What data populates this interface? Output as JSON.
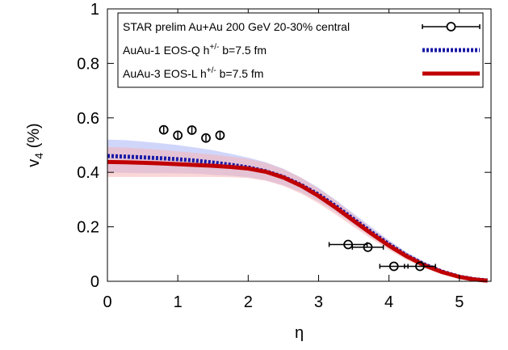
{
  "chart_data": {
    "type": "line",
    "xlabel": "η",
    "ylabel": {
      "main": "v",
      "sub": "4",
      "rest": " (%)"
    },
    "xlim": [
      0,
      5.45
    ],
    "ylim": [
      0,
      1
    ],
    "xticks": [
      0,
      1,
      2,
      3,
      4,
      5
    ],
    "yticks": [
      0,
      0.2,
      0.4,
      0.6,
      0.8,
      1
    ],
    "xtick_labels": [
      "0",
      "1",
      "2",
      "3",
      "4",
      "5"
    ],
    "ytick_labels": [
      "0",
      "0.2",
      "0.4",
      "0.6",
      "0.8",
      "1"
    ],
    "grid": false,
    "legend_position": "top-right",
    "series": [
      {
        "name": "STAR prelim Au+Au 200 GeV 20-30% central",
        "kind": "points",
        "color": "#000000",
        "points": [
          {
            "x": 0.8,
            "y": 0.556,
            "xerr": 0.0,
            "yerr": 0.012
          },
          {
            "x": 1.0,
            "y": 0.536,
            "xerr": 0.0,
            "yerr": 0.012
          },
          {
            "x": 1.2,
            "y": 0.555,
            "xerr": 0.0,
            "yerr": 0.012
          },
          {
            "x": 1.4,
            "y": 0.526,
            "xerr": 0.0,
            "yerr": 0.012
          },
          {
            "x": 1.6,
            "y": 0.536,
            "xerr": 0.0,
            "yerr": 0.012
          },
          {
            "x": 3.42,
            "y": 0.135,
            "xerr": 0.27,
            "yerr": 0.0
          },
          {
            "x": 3.7,
            "y": 0.125,
            "xerr": 0.22,
            "yerr": 0.0
          },
          {
            "x": 4.07,
            "y": 0.055,
            "xerr": 0.2,
            "yerr": 0.0
          },
          {
            "x": 4.44,
            "y": 0.055,
            "xerr": 0.22,
            "yerr": 0.0
          }
        ]
      },
      {
        "name": "AuAu-1 EOS-Q h",
        "name_sup": "+/-",
        "name_suffix": " b=7.5 fm",
        "kind": "dashed",
        "color": "#1a1aa6",
        "band_color": "#aab4f5",
        "x": [
          0,
          0.25,
          0.5,
          0.75,
          1.0,
          1.25,
          1.5,
          1.75,
          2.0,
          2.25,
          2.5,
          2.75,
          3.0,
          3.25,
          3.5,
          3.75,
          4.0,
          4.25,
          4.5,
          4.75,
          5.0,
          5.2,
          5.4
        ],
        "y": [
          0.46,
          0.458,
          0.455,
          0.452,
          0.448,
          0.443,
          0.436,
          0.428,
          0.418,
          0.404,
          0.383,
          0.354,
          0.318,
          0.275,
          0.228,
          0.181,
          0.136,
          0.095,
          0.062,
          0.036,
          0.017,
          0.008,
          0.003
        ],
        "band_halfwidth": [
          0.06,
          0.06,
          0.058,
          0.055,
          0.052,
          0.048,
          0.045,
          0.04,
          0.036,
          0.033,
          0.03,
          0.027,
          0.025,
          0.022,
          0.02,
          0.018,
          0.015,
          0.012,
          0.01,
          0.007,
          0.005,
          0.003,
          0.002
        ]
      },
      {
        "name": "AuAu-3 EOS-L h",
        "name_sup": "+/-",
        "name_suffix": " b=7.5 fm",
        "kind": "solid",
        "color": "#c00000",
        "band_color": "#f5b4b4",
        "x": [
          0,
          0.25,
          0.5,
          0.75,
          1.0,
          1.25,
          1.5,
          1.75,
          2.0,
          2.25,
          2.5,
          2.75,
          3.0,
          3.25,
          3.5,
          3.75,
          4.0,
          4.25,
          4.5,
          4.75,
          5.0,
          5.2,
          5.4
        ],
        "y": [
          0.438,
          0.437,
          0.435,
          0.433,
          0.43,
          0.427,
          0.424,
          0.42,
          0.414,
          0.402,
          0.381,
          0.351,
          0.313,
          0.269,
          0.222,
          0.175,
          0.131,
          0.092,
          0.059,
          0.034,
          0.016,
          0.007,
          0.002
        ],
        "band_halfwidth": [
          0.055,
          0.054,
          0.052,
          0.05,
          0.047,
          0.044,
          0.041,
          0.038,
          0.035,
          0.033,
          0.031,
          0.029,
          0.027,
          0.025,
          0.022,
          0.019,
          0.016,
          0.013,
          0.01,
          0.007,
          0.005,
          0.003,
          0.002
        ]
      }
    ]
  }
}
